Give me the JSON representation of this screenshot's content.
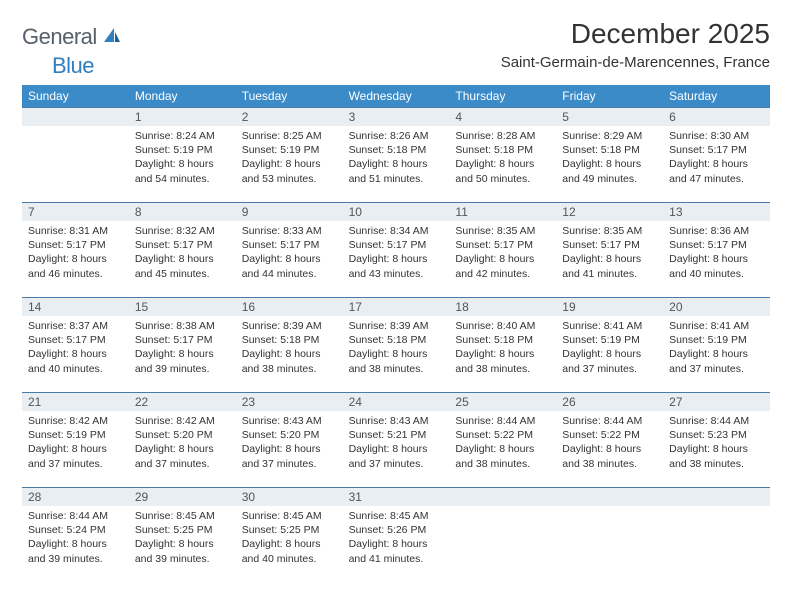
{
  "brand": {
    "name_a": "General",
    "name_b": "Blue"
  },
  "title": "December 2025",
  "location": "Saint-Germain-de-Marencennes, France",
  "colors": {
    "header_bg": "#3b8bc9",
    "date_row_bg": "#e9eef2",
    "date_row_border": "#4a7ba8",
    "text": "#333333",
    "logo_gray": "#55606a",
    "logo_blue": "#2f7fc1"
  },
  "fonts": {
    "title_size": 28,
    "location_size": 15,
    "dayheader_size": 12,
    "cell_size": 10.5
  },
  "day_names": [
    "Sunday",
    "Monday",
    "Tuesday",
    "Wednesday",
    "Thursday",
    "Friday",
    "Saturday"
  ],
  "weeks": [
    {
      "dates": [
        "",
        "1",
        "2",
        "3",
        "4",
        "5",
        "6"
      ],
      "cells": [
        null,
        {
          "sunrise": "Sunrise: 8:24 AM",
          "sunset": "Sunset: 5:19 PM",
          "day1": "Daylight: 8 hours",
          "day2": "and 54 minutes."
        },
        {
          "sunrise": "Sunrise: 8:25 AM",
          "sunset": "Sunset: 5:19 PM",
          "day1": "Daylight: 8 hours",
          "day2": "and 53 minutes."
        },
        {
          "sunrise": "Sunrise: 8:26 AM",
          "sunset": "Sunset: 5:18 PM",
          "day1": "Daylight: 8 hours",
          "day2": "and 51 minutes."
        },
        {
          "sunrise": "Sunrise: 8:28 AM",
          "sunset": "Sunset: 5:18 PM",
          "day1": "Daylight: 8 hours",
          "day2": "and 50 minutes."
        },
        {
          "sunrise": "Sunrise: 8:29 AM",
          "sunset": "Sunset: 5:18 PM",
          "day1": "Daylight: 8 hours",
          "day2": "and 49 minutes."
        },
        {
          "sunrise": "Sunrise: 8:30 AM",
          "sunset": "Sunset: 5:17 PM",
          "day1": "Daylight: 8 hours",
          "day2": "and 47 minutes."
        }
      ]
    },
    {
      "dates": [
        "7",
        "8",
        "9",
        "10",
        "11",
        "12",
        "13"
      ],
      "cells": [
        {
          "sunrise": "Sunrise: 8:31 AM",
          "sunset": "Sunset: 5:17 PM",
          "day1": "Daylight: 8 hours",
          "day2": "and 46 minutes."
        },
        {
          "sunrise": "Sunrise: 8:32 AM",
          "sunset": "Sunset: 5:17 PM",
          "day1": "Daylight: 8 hours",
          "day2": "and 45 minutes."
        },
        {
          "sunrise": "Sunrise: 8:33 AM",
          "sunset": "Sunset: 5:17 PM",
          "day1": "Daylight: 8 hours",
          "day2": "and 44 minutes."
        },
        {
          "sunrise": "Sunrise: 8:34 AM",
          "sunset": "Sunset: 5:17 PM",
          "day1": "Daylight: 8 hours",
          "day2": "and 43 minutes."
        },
        {
          "sunrise": "Sunrise: 8:35 AM",
          "sunset": "Sunset: 5:17 PM",
          "day1": "Daylight: 8 hours",
          "day2": "and 42 minutes."
        },
        {
          "sunrise": "Sunrise: 8:35 AM",
          "sunset": "Sunset: 5:17 PM",
          "day1": "Daylight: 8 hours",
          "day2": "and 41 minutes."
        },
        {
          "sunrise": "Sunrise: 8:36 AM",
          "sunset": "Sunset: 5:17 PM",
          "day1": "Daylight: 8 hours",
          "day2": "and 40 minutes."
        }
      ]
    },
    {
      "dates": [
        "14",
        "15",
        "16",
        "17",
        "18",
        "19",
        "20"
      ],
      "cells": [
        {
          "sunrise": "Sunrise: 8:37 AM",
          "sunset": "Sunset: 5:17 PM",
          "day1": "Daylight: 8 hours",
          "day2": "and 40 minutes."
        },
        {
          "sunrise": "Sunrise: 8:38 AM",
          "sunset": "Sunset: 5:17 PM",
          "day1": "Daylight: 8 hours",
          "day2": "and 39 minutes."
        },
        {
          "sunrise": "Sunrise: 8:39 AM",
          "sunset": "Sunset: 5:18 PM",
          "day1": "Daylight: 8 hours",
          "day2": "and 38 minutes."
        },
        {
          "sunrise": "Sunrise: 8:39 AM",
          "sunset": "Sunset: 5:18 PM",
          "day1": "Daylight: 8 hours",
          "day2": "and 38 minutes."
        },
        {
          "sunrise": "Sunrise: 8:40 AM",
          "sunset": "Sunset: 5:18 PM",
          "day1": "Daylight: 8 hours",
          "day2": "and 38 minutes."
        },
        {
          "sunrise": "Sunrise: 8:41 AM",
          "sunset": "Sunset: 5:19 PM",
          "day1": "Daylight: 8 hours",
          "day2": "and 37 minutes."
        },
        {
          "sunrise": "Sunrise: 8:41 AM",
          "sunset": "Sunset: 5:19 PM",
          "day1": "Daylight: 8 hours",
          "day2": "and 37 minutes."
        }
      ]
    },
    {
      "dates": [
        "21",
        "22",
        "23",
        "24",
        "25",
        "26",
        "27"
      ],
      "cells": [
        {
          "sunrise": "Sunrise: 8:42 AM",
          "sunset": "Sunset: 5:19 PM",
          "day1": "Daylight: 8 hours",
          "day2": "and 37 minutes."
        },
        {
          "sunrise": "Sunrise: 8:42 AM",
          "sunset": "Sunset: 5:20 PM",
          "day1": "Daylight: 8 hours",
          "day2": "and 37 minutes."
        },
        {
          "sunrise": "Sunrise: 8:43 AM",
          "sunset": "Sunset: 5:20 PM",
          "day1": "Daylight: 8 hours",
          "day2": "and 37 minutes."
        },
        {
          "sunrise": "Sunrise: 8:43 AM",
          "sunset": "Sunset: 5:21 PM",
          "day1": "Daylight: 8 hours",
          "day2": "and 37 minutes."
        },
        {
          "sunrise": "Sunrise: 8:44 AM",
          "sunset": "Sunset: 5:22 PM",
          "day1": "Daylight: 8 hours",
          "day2": "and 38 minutes."
        },
        {
          "sunrise": "Sunrise: 8:44 AM",
          "sunset": "Sunset: 5:22 PM",
          "day1": "Daylight: 8 hours",
          "day2": "and 38 minutes."
        },
        {
          "sunrise": "Sunrise: 8:44 AM",
          "sunset": "Sunset: 5:23 PM",
          "day1": "Daylight: 8 hours",
          "day2": "and 38 minutes."
        }
      ]
    },
    {
      "dates": [
        "28",
        "29",
        "30",
        "31",
        "",
        "",
        ""
      ],
      "cells": [
        {
          "sunrise": "Sunrise: 8:44 AM",
          "sunset": "Sunset: 5:24 PM",
          "day1": "Daylight: 8 hours",
          "day2": "and 39 minutes."
        },
        {
          "sunrise": "Sunrise: 8:45 AM",
          "sunset": "Sunset: 5:25 PM",
          "day1": "Daylight: 8 hours",
          "day2": "and 39 minutes."
        },
        {
          "sunrise": "Sunrise: 8:45 AM",
          "sunset": "Sunset: 5:25 PM",
          "day1": "Daylight: 8 hours",
          "day2": "and 40 minutes."
        },
        {
          "sunrise": "Sunrise: 8:45 AM",
          "sunset": "Sunset: 5:26 PM",
          "day1": "Daylight: 8 hours",
          "day2": "and 41 minutes."
        },
        null,
        null,
        null
      ]
    }
  ]
}
